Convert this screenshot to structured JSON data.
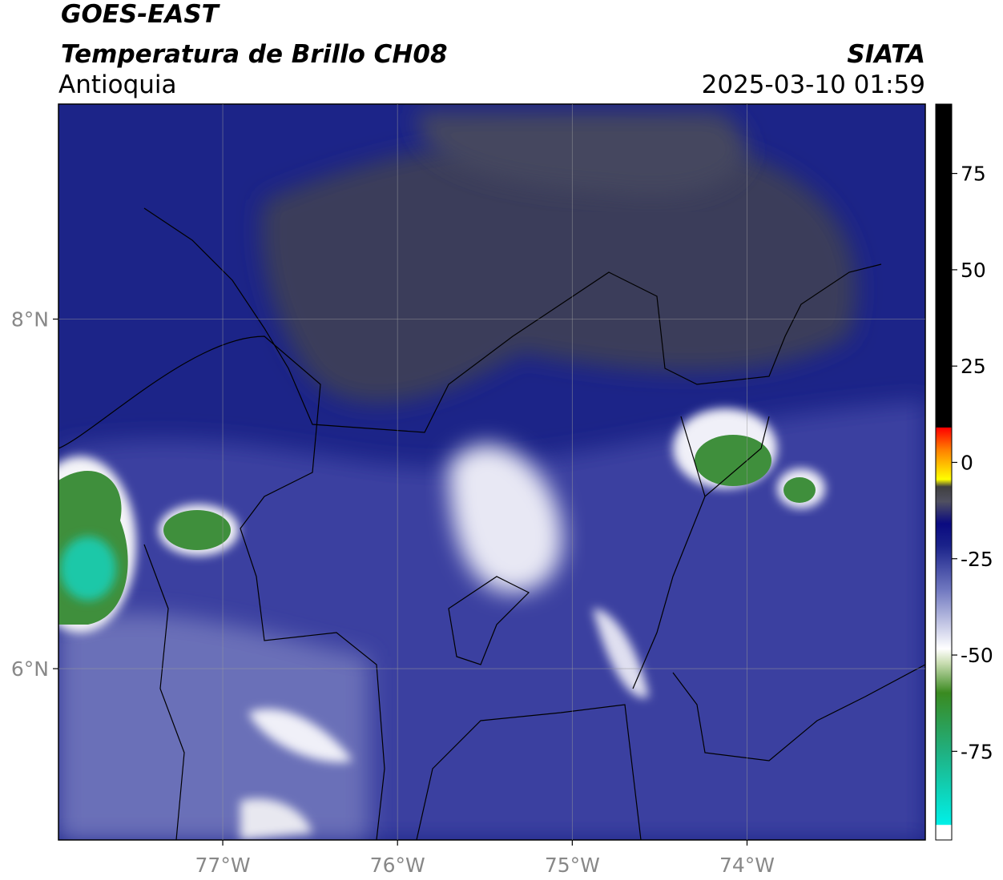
{
  "chart_data": {
    "type": "map",
    "title": "GOES-EAST",
    "subtitle": "Temperatura de Brillo CH08",
    "region": "Antioquia",
    "source": "SIATA",
    "datetime": "2025-03-10 01:59",
    "xlim": [
      -77.94,
      -72.98
    ],
    "ylim": [
      5.02,
      9.23
    ],
    "xticks": [
      {
        "value": -77,
        "label": "77°W"
      },
      {
        "value": -76,
        "label": "76°W"
      },
      {
        "value": -75,
        "label": "75°W"
      },
      {
        "value": -74,
        "label": "74°W"
      }
    ],
    "yticks": [
      {
        "value": 6,
        "label": "6°N"
      },
      {
        "value": 8,
        "label": "8°N"
      }
    ],
    "grid": true,
    "colorbar": {
      "lim": [
        -98,
        93
      ],
      "ticks": [
        75,
        50,
        25,
        0,
        -25,
        -50,
        -75
      ]
    }
  }
}
